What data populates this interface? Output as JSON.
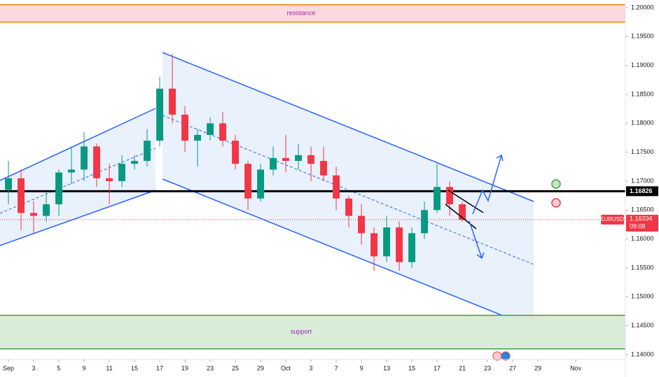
{
  "chart_data": {
    "type": "candlestick",
    "symbol": "EURUSD",
    "x": [
      0,
      1,
      2,
      3,
      4,
      5,
      6,
      7,
      8,
      9,
      10,
      11,
      12,
      13,
      14,
      15,
      16,
      17,
      18,
      19,
      20,
      21,
      22,
      23,
      24,
      25,
      26,
      27,
      28,
      29,
      30,
      31,
      32,
      33,
      34,
      35,
      36
    ],
    "open": [
      1.1685,
      1.1705,
      1.1645,
      1.164,
      1.166,
      1.1715,
      1.172,
      1.176,
      1.1705,
      1.17,
      1.173,
      1.1735,
      1.177,
      1.186,
      1.1815,
      1.177,
      1.178,
      1.18,
      1.177,
      1.173,
      1.167,
      1.172,
      1.174,
      1.1735,
      1.1745,
      1.1735,
      1.171,
      1.167,
      1.164,
      1.161,
      1.157,
      1.162,
      1.156,
      1.161,
      1.165,
      1.169,
      1.166
    ],
    "high": [
      1.1735,
      1.172,
      1.1665,
      1.168,
      1.172,
      1.176,
      1.1785,
      1.1765,
      1.173,
      1.1745,
      1.1745,
      1.179,
      1.188,
      1.192,
      1.183,
      1.179,
      1.181,
      1.182,
      1.178,
      1.1735,
      1.173,
      1.176,
      1.178,
      1.1765,
      1.176,
      1.176,
      1.1725,
      1.1675,
      1.166,
      1.162,
      1.164,
      1.163,
      1.162,
      1.1665,
      1.173,
      1.17,
      1.1665
    ],
    "low": [
      1.166,
      1.1615,
      1.161,
      1.163,
      1.164,
      1.1695,
      1.17,
      1.169,
      1.166,
      1.169,
      1.172,
      1.1725,
      1.176,
      1.18,
      1.175,
      1.1725,
      1.177,
      1.176,
      1.172,
      1.165,
      1.1665,
      1.171,
      1.1715,
      1.172,
      1.17,
      1.17,
      1.165,
      1.162,
      1.159,
      1.1545,
      1.156,
      1.1545,
      1.155,
      1.16,
      1.1645,
      1.164,
      1.163
    ],
    "close": [
      1.1705,
      1.1645,
      1.164,
      1.166,
      1.1715,
      1.172,
      1.176,
      1.1705,
      1.17,
      1.173,
      1.1735,
      1.177,
      1.186,
      1.1815,
      1.177,
      1.178,
      1.18,
      1.177,
      1.173,
      1.167,
      1.172,
      1.174,
      1.1735,
      1.1745,
      1.173,
      1.171,
      1.167,
      1.164,
      1.161,
      1.157,
      1.162,
      1.156,
      1.161,
      1.165,
      1.169,
      1.166,
      1.1633
    ],
    "up_color": "#089981",
    "down_color": "#f23645",
    "xlim": [
      -0.67,
      48.94
    ],
    "xticks": [
      {
        "value": 0,
        "label": "Sep"
      },
      {
        "value": 2,
        "label": "3"
      },
      {
        "value": 4,
        "label": "5"
      },
      {
        "value": 6,
        "label": "9"
      },
      {
        "value": 8,
        "label": "11"
      },
      {
        "value": 10,
        "label": "15"
      },
      {
        "value": 12,
        "label": "17"
      },
      {
        "value": 14,
        "label": "19"
      },
      {
        "value": 16,
        "label": "23"
      },
      {
        "value": 18,
        "label": "25"
      },
      {
        "value": 20,
        "label": "29"
      },
      {
        "value": 22,
        "label": "Oct"
      },
      {
        "value": 24,
        "label": "3"
      },
      {
        "value": 26,
        "label": "7"
      },
      {
        "value": 28,
        "label": "9"
      },
      {
        "value": 30,
        "label": "13"
      },
      {
        "value": 32,
        "label": "15"
      },
      {
        "value": 34,
        "label": "17"
      },
      {
        "value": 36,
        "label": "21"
      },
      {
        "value": 38,
        "label": "23"
      },
      {
        "value": 40,
        "label": "27"
      },
      {
        "value": 42,
        "label": "29"
      },
      {
        "value": 45,
        "label": "Nov"
      }
    ],
    "ylim": [
      1.14,
      1.2
    ],
    "yticks": [
      {
        "value": 1.14,
        "label": "1.14000"
      },
      {
        "value": 1.145,
        "label": "1.14500"
      },
      {
        "value": 1.15,
        "label": "1.15000"
      },
      {
        "value": 1.155,
        "label": "1.15500"
      },
      {
        "value": 1.16,
        "label": "1.16000"
      },
      {
        "value": 1.165,
        "label": "1.16500"
      },
      {
        "value": 1.17,
        "label": "1.17000"
      },
      {
        "value": 1.175,
        "label": "1.17500"
      },
      {
        "value": 1.18,
        "label": "1.18000"
      },
      {
        "value": 1.185,
        "label": "1.18500"
      },
      {
        "value": 1.19,
        "label": "1.19000"
      },
      {
        "value": 1.195,
        "label": "1.19500"
      },
      {
        "value": 1.2,
        "label": "1.20000"
      }
    ],
    "zones": [
      {
        "label": "resistance",
        "range": [
          1.1975,
          1.2005
        ],
        "fill": "#fcd9dd",
        "border": "#f57c00",
        "text_color": "#9c27b0"
      },
      {
        "label": "support",
        "range": [
          1.141,
          1.1468
        ],
        "fill": "#d8ecd8",
        "border": "#43a047",
        "text_color": "#9c27b0"
      }
    ],
    "hline": {
      "value": 1.16826,
      "label": "1.16826",
      "color": "#000000"
    },
    "last_price": {
      "value": 1.16334,
      "label": "1.16334",
      "time": "09:08",
      "color": "#f23645"
    }
  }
}
